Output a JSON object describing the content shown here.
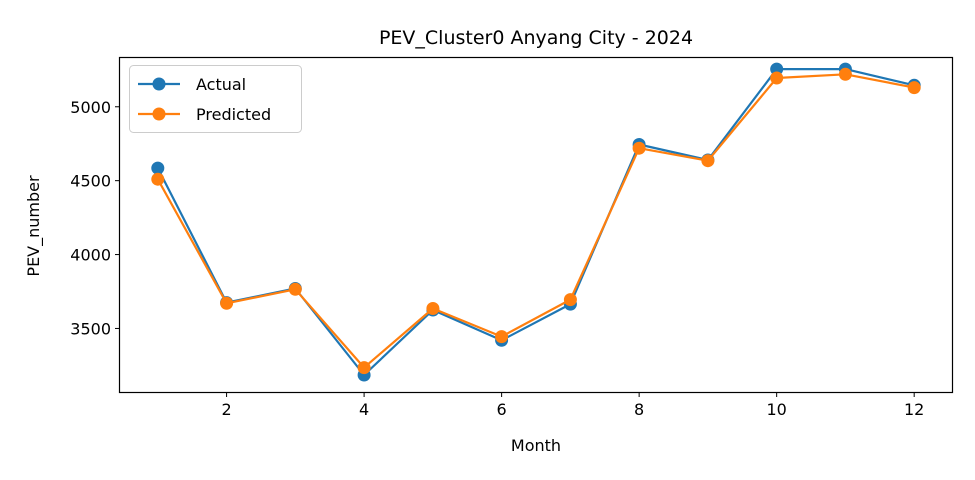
{
  "chart_data": {
    "type": "line",
    "title": "PEV_Cluster0 Anyang City - 2024",
    "xlabel": "Month",
    "ylabel": "PEV_number",
    "x": [
      1,
      2,
      3,
      4,
      5,
      6,
      7,
      8,
      9,
      10,
      11,
      12
    ],
    "xticks": [
      2,
      4,
      6,
      8,
      10,
      12
    ],
    "yticks": [
      3500,
      4000,
      4500,
      5000
    ],
    "xlim": [
      0.45,
      12.55
    ],
    "ylim": [
      3070,
      5330
    ],
    "legend_position": "top-left",
    "grid": false,
    "series": [
      {
        "name": "Actual",
        "color": "#1f77b4",
        "values": [
          4585,
          3675,
          3770,
          3185,
          3625,
          3420,
          3665,
          4745,
          4640,
          5255,
          5255,
          5145
        ]
      },
      {
        "name": "Predicted",
        "color": "#ff7f0e",
        "values": [
          4510,
          3670,
          3765,
          3235,
          3635,
          3445,
          3695,
          4720,
          4635,
          5195,
          5220,
          5130
        ]
      }
    ]
  }
}
